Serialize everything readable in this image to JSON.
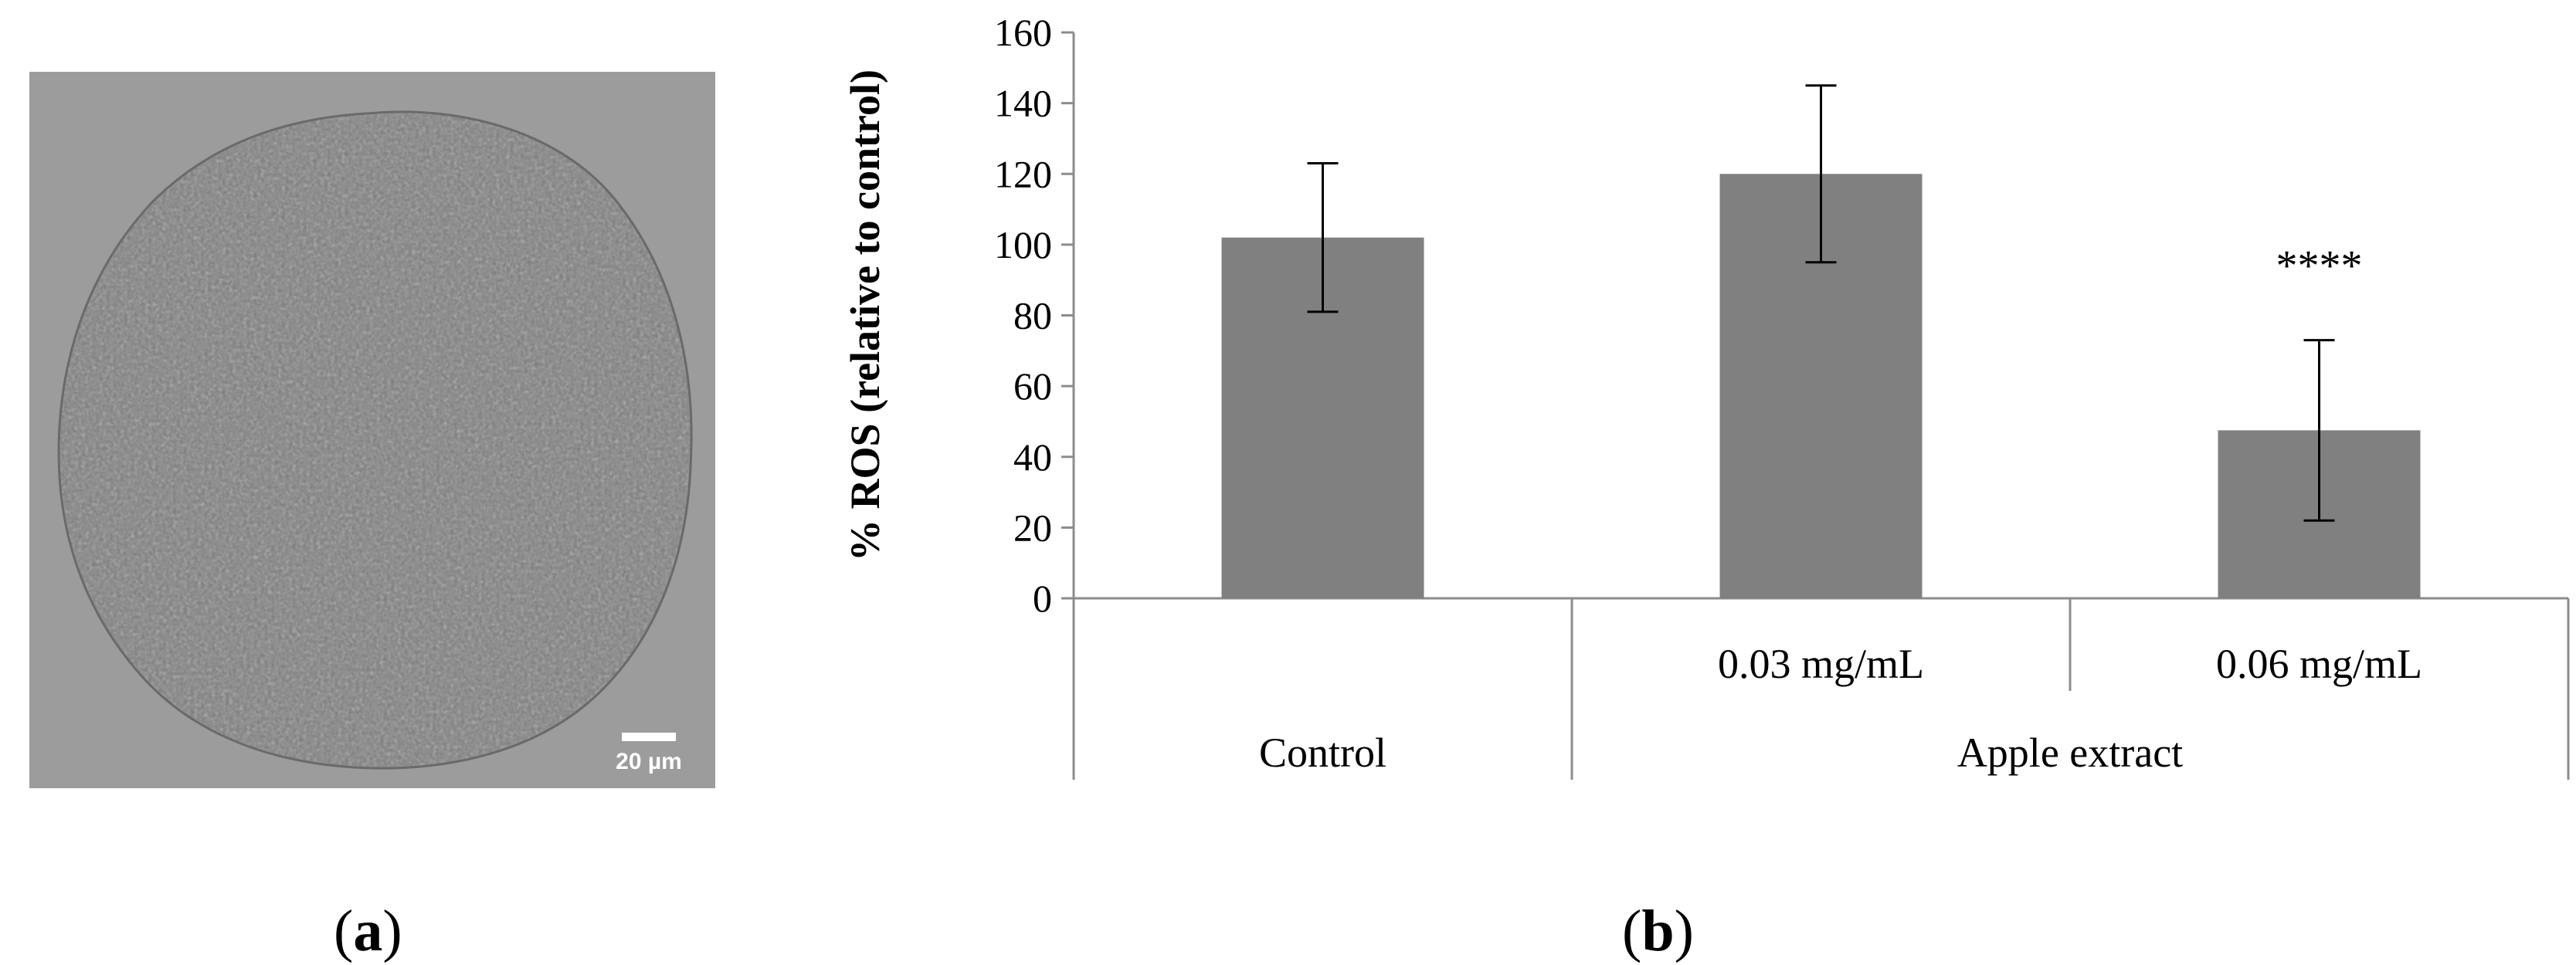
{
  "panels": {
    "a": {
      "label_open": "(",
      "label_letter": "a",
      "label_close": ")"
    },
    "b": {
      "label_open": "(",
      "label_letter": "b",
      "label_close": ")"
    }
  },
  "micrograph": {
    "scale_bar_label": "20 µm",
    "colors": {
      "background": "#9c9c9c",
      "cell": "#8a8a8a",
      "scale_bar": "#ffffff"
    }
  },
  "chart_data": {
    "type": "bar",
    "title": "",
    "xlabel": "",
    "ylabel": "% ROS (relative to control)",
    "ylim": [
      0,
      160
    ],
    "yticks": [
      0,
      20,
      40,
      60,
      80,
      100,
      120,
      140,
      160
    ],
    "categories": [
      "",
      "0.03 mg/mL",
      "0.06 mg/mL"
    ],
    "groups": [
      {
        "label": "Control",
        "categories": [
          0
        ]
      },
      {
        "label": "Apple extract",
        "categories": [
          1,
          2
        ]
      }
    ],
    "series": [
      {
        "name": "% ROS",
        "values": [
          102,
          120,
          47.5
        ],
        "error": [
          21,
          25,
          25.5
        ]
      }
    ],
    "annotations": [
      {
        "category": 2,
        "text": "****"
      }
    ],
    "colors": {
      "bar": "#808080",
      "axis": "#8c8c8c",
      "error": "#000000"
    }
  }
}
